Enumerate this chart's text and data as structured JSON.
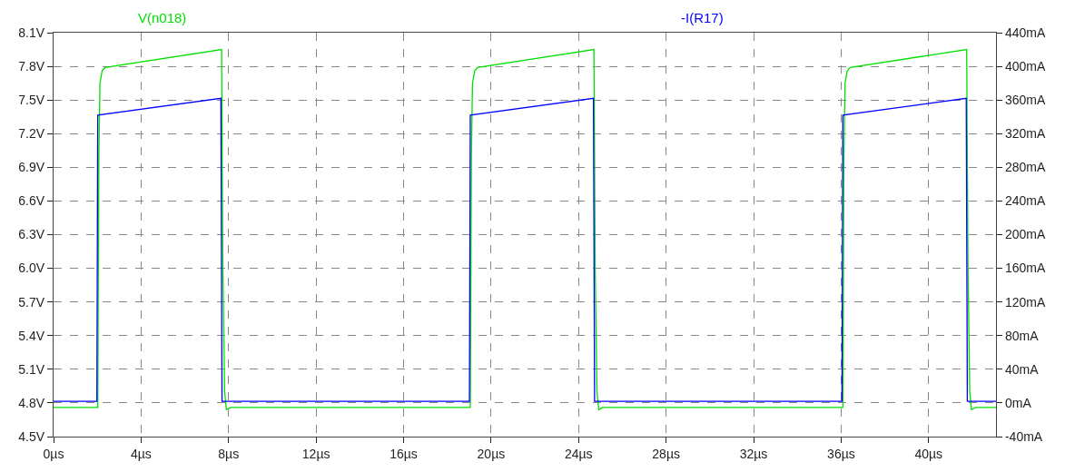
{
  "chart_data": {
    "type": "line",
    "xlim": [
      0,
      43.08
    ],
    "xticks": [
      {
        "value": 0,
        "label": "0µs"
      },
      {
        "value": 4,
        "label": "4µs"
      },
      {
        "value": 8,
        "label": "8µs"
      },
      {
        "value": 12,
        "label": "12µs"
      },
      {
        "value": 16,
        "label": "16µs"
      },
      {
        "value": 20,
        "label": "20µs"
      },
      {
        "value": 24,
        "label": "24µs"
      },
      {
        "value": 28,
        "label": "28µs"
      },
      {
        "value": 32,
        "label": "32µs"
      },
      {
        "value": 36,
        "label": "36µs"
      },
      {
        "value": 40,
        "label": "40µs"
      }
    ],
    "ylim": [
      4.5,
      8.1
    ],
    "yticks": [
      {
        "value": 4.5,
        "label": "4.5V"
      },
      {
        "value": 4.8,
        "label": "4.8V"
      },
      {
        "value": 5.1,
        "label": "5.1V"
      },
      {
        "value": 5.4,
        "label": "5.4V"
      },
      {
        "value": 5.7,
        "label": "5.7V"
      },
      {
        "value": 6.0,
        "label": "6.0V"
      },
      {
        "value": 6.3,
        "label": "6.3V"
      },
      {
        "value": 6.6,
        "label": "6.6V"
      },
      {
        "value": 6.9,
        "label": "6.9V"
      },
      {
        "value": 7.2,
        "label": "7.2V"
      },
      {
        "value": 7.5,
        "label": "7.5V"
      },
      {
        "value": 7.8,
        "label": "7.8V"
      },
      {
        "value": 8.1,
        "label": "8.1V"
      }
    ],
    "y2lim": [
      -40,
      440
    ],
    "y2ticks": [
      {
        "value": -40,
        "label": "-40mA"
      },
      {
        "value": 0,
        "label": "0mA"
      },
      {
        "value": 40,
        "label": "40mA"
      },
      {
        "value": 80,
        "label": "80mA"
      },
      {
        "value": 120,
        "label": "120mA"
      },
      {
        "value": 160,
        "label": "160mA"
      },
      {
        "value": 200,
        "label": "200mA"
      },
      {
        "value": 240,
        "label": "240mA"
      },
      {
        "value": 280,
        "label": "280mA"
      },
      {
        "value": 320,
        "label": "320mA"
      },
      {
        "value": 360,
        "label": "360mA"
      },
      {
        "value": 400,
        "label": "400mA"
      },
      {
        "value": 440,
        "label": "440mA"
      }
    ],
    "grid": true,
    "line_style": "solid",
    "marker": "none",
    "series": [
      {
        "name": "V(n018)",
        "color": "#00e000",
        "x": [
          0,
          2.02,
          2.07,
          2.12,
          2.22,
          2.35,
          7.68,
          7.74,
          7.82,
          7.9,
          8.1,
          19.05,
          19.1,
          19.15,
          19.25,
          19.38,
          24.7,
          24.76,
          24.84,
          24.92,
          25.1,
          36.08,
          36.13,
          36.18,
          36.28,
          36.41,
          41.74,
          41.8,
          41.88,
          41.96,
          42.15,
          43.08
        ],
        "values": [
          4.76,
          4.76,
          7.0,
          7.65,
          7.76,
          7.79,
          7.95,
          6.0,
          4.9,
          4.74,
          4.76,
          4.76,
          7.0,
          7.65,
          7.76,
          7.79,
          7.95,
          6.0,
          4.9,
          4.74,
          4.76,
          4.76,
          7.0,
          7.65,
          7.76,
          7.79,
          7.95,
          6.0,
          4.9,
          4.74,
          4.76,
          4.76
        ]
      },
      {
        "name": "-I(R17)",
        "color": "#0000ff",
        "axis": "y2",
        "x": [
          0,
          1.98,
          2.02,
          7.65,
          7.7,
          19.01,
          19.05,
          24.68,
          24.73,
          36.04,
          36.08,
          41.72,
          41.77,
          43.08
        ],
        "values": [
          2,
          2,
          342,
          362,
          2,
          2,
          342,
          362,
          2,
          2,
          342,
          362,
          2,
          2
        ]
      }
    ]
  }
}
